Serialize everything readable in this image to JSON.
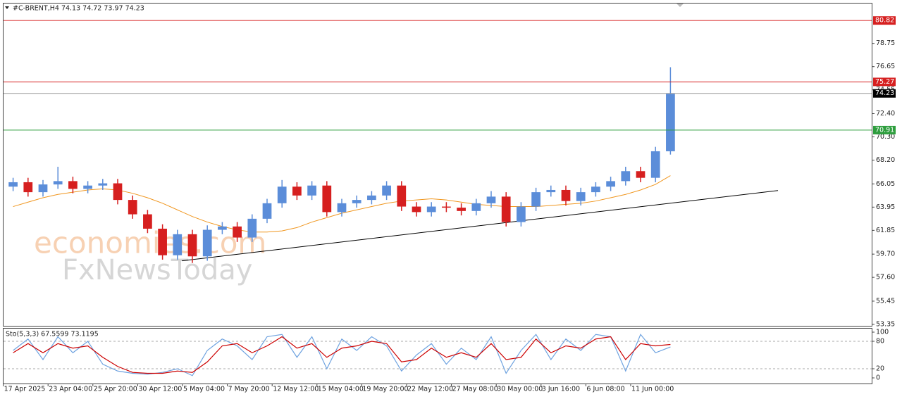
{
  "chart_data": [
    {
      "type": "candlestick",
      "title": "#C-BRENT,H4  74.13 74.72 73.97 74.23",
      "watermark": [
        "economies.com",
        "FxNewsToday"
      ],
      "categories": [
        "17 Apr 2025",
        null,
        null,
        "23 Apr 04:00",
        null,
        null,
        "25 Apr 20:00",
        null,
        null,
        "30 Apr 12:00",
        null,
        null,
        "5 May 04:00",
        null,
        null,
        "7 May 20:00",
        null,
        null,
        "12 May 12:00",
        null,
        null,
        "15 May 04:00",
        null,
        null,
        "19 May 20:00",
        null,
        null,
        "22 May 12:00",
        null,
        null,
        "27 May 08:00",
        null,
        null,
        "30 May 00:00",
        null,
        null,
        "3 Jun 16:00",
        null,
        null,
        "6 Jun 08:00",
        null,
        null,
        "11 Jun 00:00",
        null,
        null
      ],
      "open": [
        65.8,
        66.2,
        65.3,
        66.0,
        66.3,
        65.6,
        65.9,
        66.1,
        64.6,
        63.3,
        62.0,
        59.6,
        61.5,
        59.5,
        61.9,
        62.2,
        61.2,
        62.9,
        64.3,
        65.8,
        65.0,
        65.9,
        63.5,
        64.3,
        64.6,
        65.0,
        65.9,
        64.0,
        63.5,
        64.0,
        63.9,
        63.6,
        64.3,
        64.9,
        62.6,
        64.0,
        65.3,
        65.5,
        64.5,
        65.3,
        65.8,
        66.3,
        67.2,
        66.6,
        69.0
      ],
      "high": [
        66.6,
        66.6,
        66.4,
        67.6,
        66.7,
        66.3,
        66.5,
        66.5,
        65.0,
        63.7,
        62.4,
        61.9,
        61.9,
        62.3,
        62.6,
        62.6,
        63.3,
        64.7,
        66.4,
        66.2,
        66.3,
        66.3,
        64.7,
        65.0,
        65.4,
        66.3,
        66.3,
        64.4,
        64.4,
        64.4,
        64.3,
        64.7,
        65.4,
        65.3,
        64.4,
        65.7,
        65.9,
        65.9,
        65.7,
        66.2,
        66.7,
        67.6,
        67.6,
        69.4,
        76.6
      ],
      "low": [
        65.4,
        64.9,
        64.9,
        65.6,
        65.2,
        65.2,
        65.5,
        64.2,
        62.9,
        61.6,
        59.2,
        59.2,
        58.9,
        59.1,
        61.5,
        60.8,
        60.8,
        62.5,
        63.9,
        64.6,
        64.6,
        63.1,
        63.1,
        63.9,
        64.2,
        64.6,
        63.6,
        63.1,
        63.1,
        63.5,
        63.2,
        63.2,
        63.9,
        62.2,
        62.2,
        63.6,
        64.9,
        64.1,
        64.1,
        64.9,
        65.4,
        65.9,
        66.2,
        66.2,
        68.7
      ],
      "close": [
        66.2,
        65.3,
        66.0,
        66.3,
        65.6,
        65.9,
        66.1,
        64.6,
        63.3,
        62.0,
        59.6,
        61.5,
        59.5,
        61.9,
        62.2,
        61.2,
        62.9,
        64.3,
        65.8,
        65.0,
        65.9,
        63.5,
        64.3,
        64.6,
        65.0,
        65.9,
        64.0,
        63.5,
        64.0,
        63.9,
        63.6,
        64.3,
        64.9,
        62.6,
        64.0,
        65.3,
        65.5,
        64.5,
        65.3,
        65.8,
        66.3,
        67.2,
        66.6,
        69.0,
        74.2
      ],
      "up_color": "#5b8dd9",
      "down_color": "#d61f1f",
      "moving_average": {
        "color": "#f0961e",
        "values": [
          64.0,
          64.4,
          64.8,
          65.1,
          65.3,
          65.5,
          65.6,
          65.5,
          65.2,
          64.8,
          64.3,
          63.7,
          63.1,
          62.6,
          62.2,
          61.9,
          61.7,
          61.7,
          61.8,
          62.1,
          62.6,
          63.0,
          63.4,
          63.7,
          64.0,
          64.3,
          64.5,
          64.6,
          64.7,
          64.6,
          64.4,
          64.2,
          64.1,
          64.0,
          64.0,
          64.0,
          64.1,
          64.2,
          64.3,
          64.5,
          64.8,
          65.1,
          65.5,
          66.0,
          66.8
        ]
      },
      "trendline": {
        "x": [
          11.3,
          51.2
        ],
        "y": [
          59.1,
          65.45
        ],
        "color": "#000000"
      },
      "levels": [
        {
          "value": 80.82,
          "color": "#d62020"
        },
        {
          "value": 75.27,
          "color": "#d62020"
        },
        {
          "value": 70.91,
          "color": "#2e9e3e"
        },
        {
          "value": 74.23,
          "color": "#9a9a9a",
          "label_color": "#000000"
        }
      ],
      "ylim": [
        53.22,
        82.42
      ],
      "yticks": [
        53.35,
        55.45,
        {
          "value": 57.6,
          "label": "57.60"
        },
        {
          "value": 59.7,
          "label": "59.70"
        },
        61.85,
        63.95,
        66.05,
        {
          "value": 68.2,
          "label": "68.20"
        },
        {
          "value": 70.3,
          "label": "70.30"
        },
        {
          "value": 72.4,
          "label": "72.40"
        },
        74.55,
        76.65,
        78.75
      ]
    },
    {
      "type": "line",
      "title": "Sto(5,3,3) 67.5599 73.1195",
      "series": [
        {
          "name": "Main",
          "color": "#6fa3e0",
          "values": [
            60,
            85,
            40,
            90,
            55,
            80,
            30,
            15,
            10,
            8,
            12,
            20,
            5,
            60,
            85,
            70,
            40,
            90,
            95,
            45,
            90,
            20,
            85,
            60,
            90,
            70,
            15,
            50,
            75,
            30,
            65,
            40,
            90,
            10,
            60,
            95,
            40,
            85,
            60,
            95,
            90,
            15,
            95,
            55,
            67.5599
          ]
        },
        {
          "name": "Signal",
          "color": "#cc0000",
          "values": [
            55,
            75,
            55,
            75,
            65,
            70,
            45,
            25,
            12,
            10,
            10,
            15,
            12,
            35,
            70,
            75,
            55,
            70,
            90,
            65,
            75,
            45,
            65,
            70,
            80,
            75,
            35,
            40,
            65,
            45,
            55,
            45,
            75,
            40,
            45,
            85,
            55,
            70,
            65,
            85,
            90,
            40,
            75,
            70,
            73.1195
          ]
        }
      ],
      "levels": [
        80,
        20
      ],
      "ylim": [
        -12.3,
        107.7
      ],
      "yticks": [
        0,
        20,
        80,
        100
      ]
    }
  ]
}
